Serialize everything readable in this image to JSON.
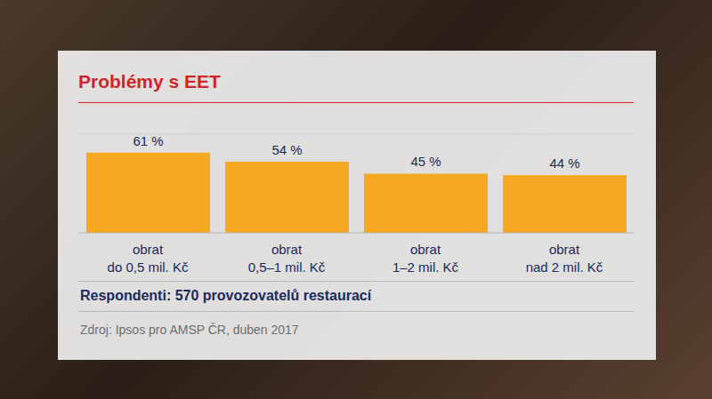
{
  "chart_data": {
    "type": "bar",
    "title": "Problémy s EET",
    "categories": [
      "obrat do 0,5 mil. Kč",
      "obrat 0,5–1 mil. Kč",
      "obrat 1–2 mil. Kč",
      "obrat nad 2 mil. Kč"
    ],
    "values": [
      61,
      54,
      45,
      44
    ],
    "value_labels": [
      "61 %",
      "54 %",
      "45 %",
      "44 %"
    ],
    "color": "#f6a821",
    "ylim": [
      0,
      75
    ],
    "yticks": [
      0,
      15,
      30,
      45,
      60,
      75
    ],
    "grid": true,
    "data_labels": true,
    "tick_labels": "x",
    "annotations": [
      "Respondenti: 570 provozovatelů restaurací",
      "Zdroj: Ipsos pro AMSP ČR, duben 2017"
    ]
  }
}
